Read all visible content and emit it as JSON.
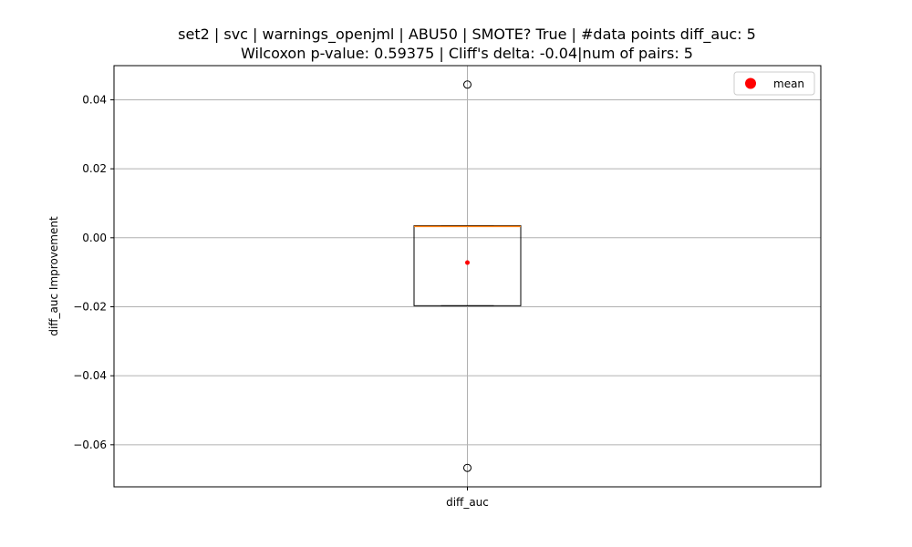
{
  "chart_data": {
    "type": "box",
    "title": "set2 | svc | warnings_openjml | ABU50 | SMOTE? True | #data points diff_auc: 5",
    "subtitle": "Wilcoxon p-value: 0.59375 | Cliff's delta: -0.04|num of pairs: 5",
    "xlabel": "",
    "ylabel": "diff_auc Improvement",
    "categories": [
      "diff_auc"
    ],
    "ylim": [
      -0.0722,
      0.0499
    ],
    "yticks": [
      -0.06,
      -0.04,
      -0.02,
      0.0,
      0.02,
      0.04
    ],
    "ytick_labels": [
      "−0.06",
      "−0.04",
      "−0.02",
      "0.00",
      "0.02",
      "0.04"
    ],
    "grid": true,
    "legend": {
      "position": "top-right",
      "entries": [
        "mean"
      ]
    },
    "boxes": [
      {
        "name": "diff_auc",
        "q1": -0.0197,
        "median": 0.0033,
        "q3": 0.0035,
        "whisker_low": -0.0197,
        "whisker_high": 0.0035,
        "mean": -0.0072,
        "outliers": [
          0.0444,
          -0.0667
        ]
      }
    ],
    "colors": {
      "box": "#000000",
      "median": "#ff7f0e",
      "mean": "#ff0000",
      "grid": "#b0b0b0"
    }
  }
}
